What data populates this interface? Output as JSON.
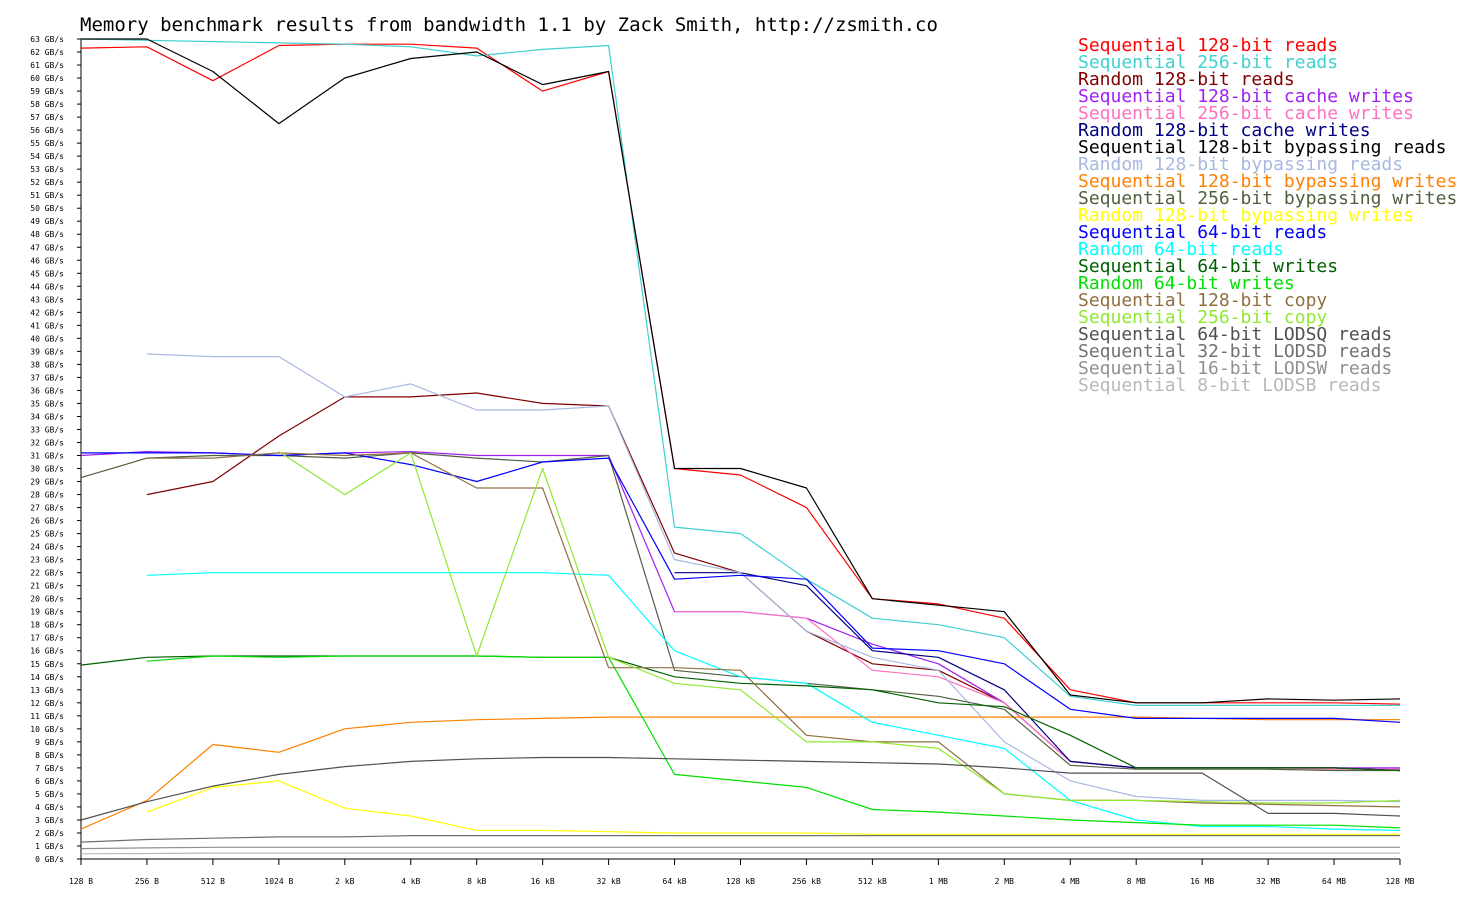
{
  "chart_data": {
    "type": "line",
    "title": "Memory benchmark results from bandwidth 1.1 by Zack Smith, http://zsmith.co",
    "xlabel": "",
    "ylabel": "",
    "x_scale": "log2",
    "categories": [
      "128 B",
      "256 B",
      "512 B",
      "1024 B",
      "2 kB",
      "4 kB",
      "8 kB",
      "16 kB",
      "32 kB",
      "64 kB",
      "128 kB",
      "256 kB",
      "512 kB",
      "1 MB",
      "2 MB",
      "4 MB",
      "8 MB",
      "16 MB",
      "32 MB",
      "64 MB",
      "128 MB"
    ],
    "y_ticks": [
      "0 GB/s",
      "1 GB/s",
      "2 GB/s",
      "3 GB/s",
      "4 GB/s",
      "5 GB/s",
      "6 GB/s",
      "7 GB/s",
      "8 GB/s",
      "9 GB/s",
      "10 GB/s",
      "11 GB/s",
      "12 GB/s",
      "13 GB/s",
      "14 GB/s",
      "15 GB/s",
      "16 GB/s",
      "17 GB/s",
      "18 GB/s",
      "19 GB/s",
      "20 GB/s",
      "21 GB/s",
      "22 GB/s",
      "23 GB/s",
      "24 GB/s",
      "25 GB/s",
      "26 GB/s",
      "27 GB/s",
      "28 GB/s",
      "29 GB/s",
      "30 GB/s",
      "31 GB/s",
      "32 GB/s",
      "33 GB/s",
      "34 GB/s",
      "35 GB/s",
      "36 GB/s",
      "37 GB/s",
      "38 GB/s",
      "39 GB/s",
      "40 GB/s",
      "41 GB/s",
      "42 GB/s",
      "43 GB/s",
      "44 GB/s",
      "45 GB/s",
      "46 GB/s",
      "47 GB/s",
      "48 GB/s",
      "49 GB/s",
      "50 GB/s",
      "51 GB/s",
      "52 GB/s",
      "53 GB/s",
      "54 GB/s",
      "55 GB/s",
      "56 GB/s",
      "57 GB/s",
      "58 GB/s",
      "59 GB/s",
      "60 GB/s",
      "61 GB/s",
      "62 GB/s",
      "63 GB/s"
    ],
    "ylim": [
      0,
      63
    ],
    "grid": false,
    "legend_position": "top-right",
    "series": [
      {
        "name": "Sequential 128-bit reads",
        "color": "#ff0000",
        "values": [
          62.3,
          62.4,
          59.8,
          62.5,
          62.6,
          62.6,
          62.3,
          59.0,
          60.5,
          30.0,
          29.5,
          27.0,
          20.0,
          19.6,
          18.5,
          13.0,
          12.0,
          12.0,
          12.0,
          12.0,
          11.9
        ]
      },
      {
        "name": "Sequential 256-bit reads",
        "color": "#40d0d0",
        "values": [
          63.0,
          62.9,
          62.8,
          62.7,
          62.6,
          62.4,
          61.7,
          62.2,
          62.5,
          25.5,
          25.0,
          21.5,
          18.5,
          18.0,
          17.0,
          12.5,
          11.8,
          11.8,
          11.8,
          11.8,
          11.8
        ]
      },
      {
        "name": "Random 128-bit reads",
        "color": "#800000",
        "values": [
          null,
          28.0,
          29.0,
          32.5,
          35.5,
          35.5,
          35.8,
          35.0,
          34.8,
          23.5,
          22.0,
          17.5,
          15.0,
          14.5,
          12.0,
          7.5,
          7.0,
          7.0,
          7.0,
          7.0,
          6.8
        ]
      },
      {
        "name": "Sequential 128-bit cache writes",
        "color": "#a020f0",
        "values": [
          31.0,
          31.3,
          31.2,
          31.0,
          31.2,
          31.3,
          31.0,
          31.0,
          31.0,
          19.0,
          19.0,
          18.5,
          16.5,
          15.0,
          12.0,
          7.5,
          7.0,
          7.0,
          7.0,
          7.0,
          7.0
        ]
      },
      {
        "name": "Sequential 256-bit cache writes",
        "color": "#ff70c0",
        "values": [
          null,
          null,
          null,
          null,
          null,
          null,
          null,
          null,
          null,
          19.0,
          19.0,
          18.5,
          14.5,
          14.0,
          12.0,
          7.5,
          7.0,
          7.0,
          7.0,
          6.9,
          6.9
        ]
      },
      {
        "name": "Random 128-bit cache writes",
        "color": "#000080",
        "values": [
          null,
          null,
          null,
          null,
          null,
          null,
          null,
          null,
          null,
          22.0,
          22.0,
          21.0,
          16.0,
          15.5,
          13.0,
          7.5,
          7.0,
          7.0,
          7.0,
          7.0,
          6.8
        ]
      },
      {
        "name": "Sequential 128-bit bypassing reads",
        "color": "#000000",
        "values": [
          63.0,
          63.0,
          60.5,
          56.5,
          60.0,
          61.5,
          62.0,
          59.5,
          60.5,
          30.0,
          30.0,
          28.5,
          20.0,
          19.5,
          19.0,
          12.6,
          12.0,
          12.0,
          12.3,
          12.2,
          12.3
        ]
      },
      {
        "name": "Random 128-bit bypassing reads",
        "color": "#a8b8e0",
        "values": [
          null,
          38.8,
          38.6,
          38.6,
          35.5,
          36.5,
          34.5,
          34.5,
          34.8,
          23.0,
          22.0,
          17.5,
          15.5,
          14.5,
          9.0,
          6.0,
          4.8,
          4.5,
          4.5,
          4.5,
          4.4
        ]
      },
      {
        "name": "Sequential 128-bit bypassing writes",
        "color": "#ff8000",
        "values": [
          2.3,
          4.5,
          8.8,
          8.2,
          10.0,
          10.5,
          10.7,
          10.8,
          10.9,
          10.9,
          10.9,
          10.9,
          10.9,
          10.9,
          10.9,
          10.9,
          10.9,
          10.8,
          10.7,
          10.7,
          10.7
        ]
      },
      {
        "name": "Sequential 256-bit bypassing writes",
        "color": "#506040",
        "values": [
          29.3,
          30.8,
          31.0,
          31.0,
          30.8,
          31.2,
          30.8,
          30.5,
          31.0,
          14.5,
          14.0,
          13.5,
          13.0,
          12.5,
          11.5,
          7.2,
          6.9,
          6.9,
          6.9,
          6.8,
          6.8
        ]
      },
      {
        "name": "Random 128-bit bypassing writes",
        "color": "#ffff00",
        "values": [
          null,
          3.6,
          5.5,
          6.0,
          3.9,
          3.3,
          2.2,
          2.2,
          2.1,
          2.0,
          2.0,
          2.0,
          1.9,
          1.9,
          1.9,
          1.9,
          1.9,
          1.9,
          1.9,
          1.9,
          1.9
        ]
      },
      {
        "name": "Sequential 64-bit reads",
        "color": "#0000ff",
        "values": [
          31.2,
          31.2,
          31.2,
          31.0,
          31.2,
          30.3,
          29.0,
          30.5,
          30.8,
          21.5,
          21.8,
          21.5,
          16.2,
          16.0,
          15.0,
          11.5,
          10.8,
          10.8,
          10.8,
          10.8,
          10.5
        ]
      },
      {
        "name": "Random 64-bit reads",
        "color": "#00ffff",
        "values": [
          null,
          21.8,
          22.0,
          22.0,
          22.0,
          22.0,
          22.0,
          22.0,
          21.8,
          16.0,
          14.0,
          13.5,
          10.5,
          9.5,
          8.5,
          4.5,
          3.0,
          2.5,
          2.5,
          2.3,
          2.2
        ]
      },
      {
        "name": "Sequential 64-bit writes",
        "color": "#006000",
        "values": [
          14.9,
          15.5,
          15.6,
          15.6,
          15.6,
          15.6,
          15.6,
          15.5,
          15.5,
          14.0,
          13.5,
          13.3,
          13.0,
          12.0,
          11.7,
          9.5,
          7.0,
          7.0,
          7.0,
          7.0,
          6.8
        ]
      },
      {
        "name": "Random 64-bit writes",
        "color": "#00e000",
        "values": [
          null,
          15.2,
          15.6,
          15.5,
          15.6,
          15.6,
          15.6,
          15.5,
          15.5,
          6.5,
          6.0,
          5.5,
          3.8,
          3.6,
          3.3,
          3.0,
          2.8,
          2.6,
          2.6,
          2.6,
          2.4
        ]
      },
      {
        "name": "Sequential 128-bit copy",
        "color": "#907040",
        "values": [
          null,
          30.8,
          30.8,
          31.2,
          31.0,
          31.2,
          28.5,
          28.5,
          14.7,
          14.7,
          14.5,
          9.5,
          9.0,
          9.0,
          5.0,
          4.5,
          4.5,
          4.3,
          4.2,
          4.1,
          4.0
        ]
      },
      {
        "name": "Sequential 256-bit copy",
        "color": "#90e830",
        "values": [
          null,
          null,
          null,
          31.3,
          28.0,
          31.2,
          15.6,
          30.0,
          15.5,
          13.5,
          13.0,
          9.0,
          9.0,
          8.5,
          5.0,
          4.5,
          4.5,
          4.4,
          4.3,
          4.3,
          4.5
        ]
      },
      {
        "name": "Sequential 64-bit LODSQ reads",
        "color": "#505050",
        "values": [
          3.0,
          4.4,
          5.6,
          6.5,
          7.1,
          7.5,
          7.7,
          7.8,
          7.8,
          7.7,
          7.6,
          7.5,
          7.4,
          7.3,
          7.0,
          6.6,
          6.6,
          6.6,
          3.5,
          3.5,
          3.3
        ]
      },
      {
        "name": "Sequential 32-bit LODSD reads",
        "color": "#707070",
        "values": [
          1.3,
          1.5,
          1.6,
          1.7,
          1.7,
          1.8,
          1.8,
          1.8,
          1.8,
          1.8,
          1.8,
          1.8,
          1.8,
          1.8,
          1.8,
          1.8,
          1.8,
          1.8,
          1.8,
          1.8,
          1.8
        ]
      },
      {
        "name": "Sequential 16-bit LODSW reads",
        "color": "#909090",
        "values": [
          0.8,
          0.85,
          0.9,
          0.9,
          0.9,
          0.9,
          0.9,
          0.9,
          0.9,
          0.9,
          0.9,
          0.9,
          0.9,
          0.9,
          0.9,
          0.9,
          0.9,
          0.9,
          0.9,
          0.9,
          0.9
        ]
      },
      {
        "name": "Sequential 8-bit LODSB reads",
        "color": "#b8b8b8",
        "values": [
          0.4,
          0.42,
          0.45,
          0.45,
          0.45,
          0.45,
          0.45,
          0.45,
          0.45,
          0.45,
          0.45,
          0.45,
          0.45,
          0.45,
          0.45,
          0.45,
          0.45,
          0.45,
          0.45,
          0.45,
          0.45
        ]
      }
    ]
  }
}
